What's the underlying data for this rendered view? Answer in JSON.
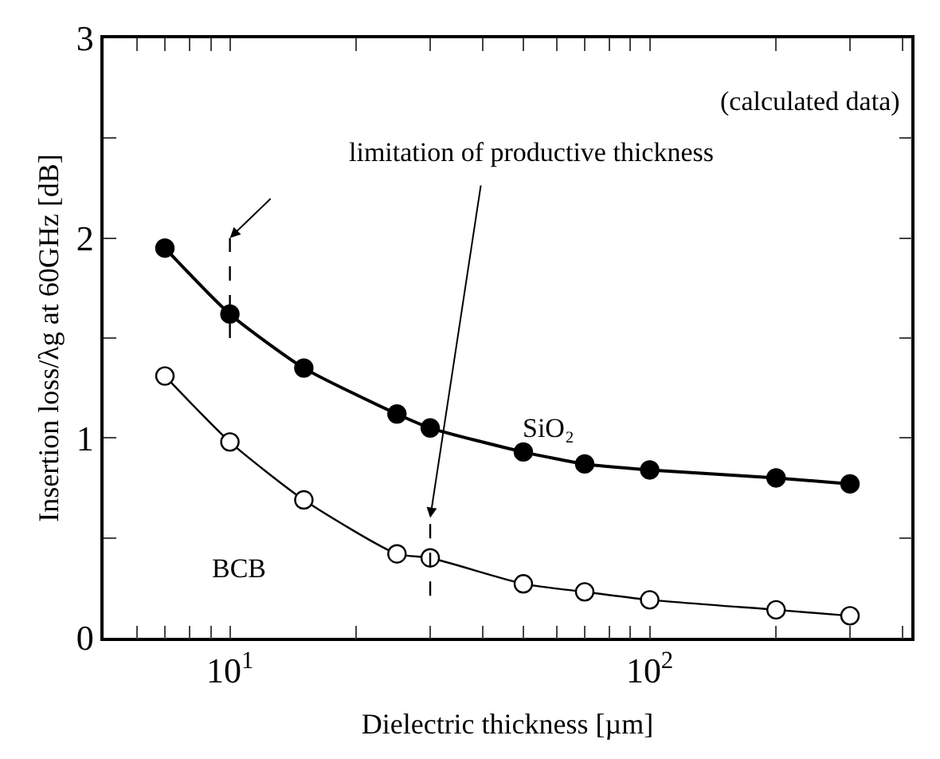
{
  "chart_data": {
    "type": "line",
    "xlabel": "Dielectric thickness [µm]",
    "ylabel": "Insertion loss/λg at 60GHz [dB]",
    "annotations": [
      "(calculated data)",
      "limitation of productive thickness"
    ],
    "x": [
      7,
      10,
      15,
      25,
      30,
      50,
      70,
      100,
      200,
      300
    ],
    "series": [
      {
        "name": "SiO₂",
        "color": "#000000",
        "values": [
          1.95,
          1.62,
          1.35,
          1.12,
          1.05,
          0.93,
          0.87,
          0.84,
          0.8,
          0.77
        ]
      },
      {
        "name": "BCB",
        "color": "#ffffff",
        "values": [
          1.31,
          0.98,
          0.69,
          0.42,
          0.4,
          0.27,
          0.23,
          0.19,
          0.14,
          0.11
        ]
      }
    ],
    "log": "x",
    "xlim": [
      5,
      420
    ],
    "xticks": [
      {
        "value": 6,
        "label": null
      },
      {
        "value": 7,
        "label": null
      },
      {
        "value": 8,
        "label": null
      },
      {
        "value": 9,
        "label": null
      },
      {
        "value": 10,
        "label": "10$^{1}$"
      },
      {
        "value": 20,
        "label": null
      },
      {
        "value": 30,
        "label": null
      },
      {
        "value": 40,
        "label": null
      },
      {
        "value": 50,
        "label": null
      },
      {
        "value": 60,
        "label": null
      },
      {
        "value": 70,
        "label": null
      },
      {
        "value": 80,
        "label": null
      },
      {
        "value": 90,
        "label": null
      },
      {
        "value": 100,
        "label": "10$^{2}$"
      },
      {
        "value": 200,
        "label": null
      },
      {
        "value": 300,
        "label": null
      },
      {
        "value": 400,
        "label": null
      }
    ],
    "ylim": [
      0,
      3
    ],
    "yticks": [
      0,
      {
        "value": 0.5,
        "label": null
      },
      1,
      {
        "value": 1.5,
        "label": null
      },
      2,
      {
        "value": 2.5,
        "label": null
      },
      3
    ],
    "ref_lines": [
      {
        "axis": "x",
        "value": 10,
        "line_style": "dashed"
      },
      {
        "axis": "x",
        "value": 30,
        "line_style": "dashed"
      }
    ],
    "marker": "circle",
    "line_style": "solid",
    "grid": false,
    "legend": false
  }
}
